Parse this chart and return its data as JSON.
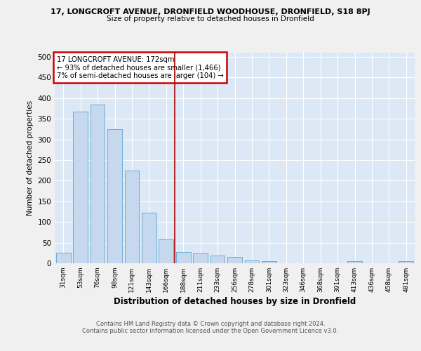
{
  "title_line1": "17, LONGCROFT AVENUE, DRONFIELD WOODHOUSE, DRONFIELD, S18 8PJ",
  "title_line2": "Size of property relative to detached houses in Dronfield",
  "xlabel": "Distribution of detached houses by size in Dronfield",
  "ylabel": "Number of detached properties",
  "categories": [
    "31sqm",
    "53sqm",
    "76sqm",
    "98sqm",
    "121sqm",
    "143sqm",
    "166sqm",
    "188sqm",
    "211sqm",
    "233sqm",
    "256sqm",
    "278sqm",
    "301sqm",
    "323sqm",
    "346sqm",
    "368sqm",
    "391sqm",
    "413sqm",
    "436sqm",
    "458sqm",
    "481sqm"
  ],
  "values": [
    26,
    368,
    384,
    325,
    225,
    122,
    58,
    27,
    23,
    18,
    16,
    6,
    5,
    0,
    0,
    0,
    0,
    5,
    0,
    0,
    5
  ],
  "bar_color": "#c5d8ed",
  "bar_edge_color": "#6aaed6",
  "vline_x": 6.5,
  "vline_color": "#aa0000",
  "annotation_text": "17 LONGCROFT AVENUE: 172sqm\n← 93% of detached houses are smaller (1,466)\n7% of semi-detached houses are larger (104) →",
  "annotation_box_facecolor": "#ffffff",
  "annotation_box_edgecolor": "#cc0000",
  "ylim": [
    0,
    510
  ],
  "yticks": [
    0,
    50,
    100,
    150,
    200,
    250,
    300,
    350,
    400,
    450,
    500
  ],
  "fig_facecolor": "#f0f0f0",
  "plot_bg_color": "#dce8f5",
  "footer_line1": "Contains HM Land Registry data © Crown copyright and database right 2024.",
  "footer_line2": "Contains public sector information licensed under the Open Government Licence v3.0."
}
